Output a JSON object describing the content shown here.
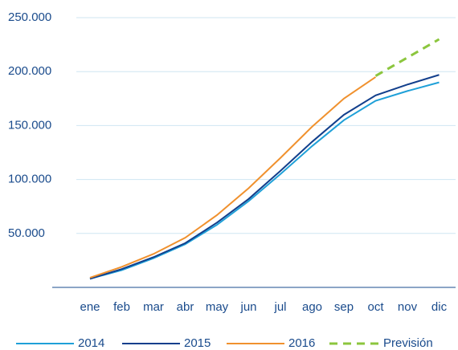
{
  "chart_data": {
    "type": "line",
    "categories": [
      "ene",
      "feb",
      "mar",
      "abr",
      "may",
      "jun",
      "jul",
      "ago",
      "sep",
      "oct",
      "nov",
      "dic"
    ],
    "series": [
      {
        "name": "2014",
        "color": "#1fa0d8",
        "values": [
          8000,
          16000,
          27000,
          40000,
          58000,
          80000,
          105000,
          131000,
          155000,
          173000,
          182000,
          190000
        ]
      },
      {
        "name": "2015",
        "color": "#123f8c",
        "values": [
          8000,
          17000,
          28000,
          41000,
          60000,
          82000,
          108000,
          135000,
          160000,
          178000,
          188000,
          197000
        ]
      },
      {
        "name": "2016",
        "color": "#f0912e",
        "values": [
          9000,
          19000,
          31000,
          46000,
          67000,
          92000,
          120000,
          149000,
          175000,
          195000,
          null,
          null
        ]
      },
      {
        "name": "Previsión",
        "color": "#8cc63e",
        "dashed": true,
        "values": [
          null,
          null,
          null,
          null,
          null,
          null,
          null,
          null,
          null,
          196000,
          213000,
          230000
        ]
      }
    ],
    "ylim": [
      0,
      250000
    ],
    "yticks": [
      {
        "value": 50000,
        "label": "50.000"
      },
      {
        "value": 100000,
        "label": "100.000"
      },
      {
        "value": 150000,
        "label": "150.000"
      },
      {
        "value": 200000,
        "label": "200.000"
      },
      {
        "value": 250000,
        "label": "250.000"
      }
    ],
    "grid": true,
    "legend": "bottom"
  }
}
